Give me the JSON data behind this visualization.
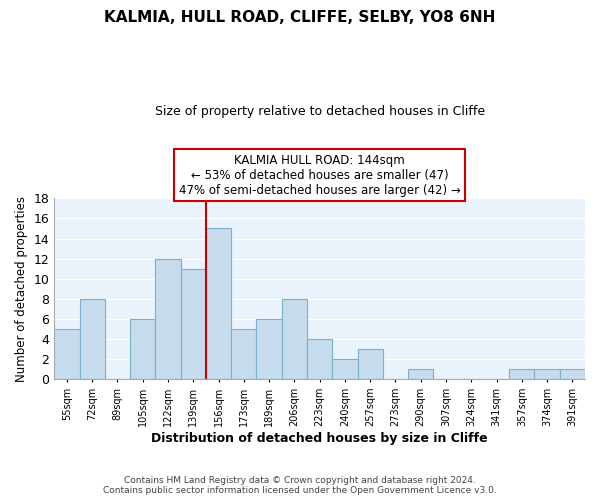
{
  "title": "KALMIA, HULL ROAD, CLIFFE, SELBY, YO8 6NH",
  "subtitle": "Size of property relative to detached houses in Cliffe",
  "xlabel": "Distribution of detached houses by size in Cliffe",
  "ylabel": "Number of detached properties",
  "bar_labels": [
    "55sqm",
    "72sqm",
    "89sqm",
    "105sqm",
    "122sqm",
    "139sqm",
    "156sqm",
    "173sqm",
    "189sqm",
    "206sqm",
    "223sqm",
    "240sqm",
    "257sqm",
    "273sqm",
    "290sqm",
    "307sqm",
    "324sqm",
    "341sqm",
    "357sqm",
    "374sqm",
    "391sqm"
  ],
  "bar_values": [
    5,
    8,
    0,
    6,
    12,
    11,
    15,
    5,
    6,
    8,
    4,
    2,
    3,
    0,
    1,
    0,
    0,
    0,
    1,
    1,
    1
  ],
  "bar_color": "#c6dcec",
  "bar_edgecolor": "#7ab0cc",
  "vline_x_index": 6,
  "vline_color": "#cc0000",
  "annotation_title": "KALMIA HULL ROAD: 144sqm",
  "annotation_line1": "← 53% of detached houses are smaller (47)",
  "annotation_line2": "47% of semi-detached houses are larger (42) →",
  "ylim": [
    0,
    18
  ],
  "yticks": [
    0,
    2,
    4,
    6,
    8,
    10,
    12,
    14,
    16,
    18
  ],
  "footer_line1": "Contains HM Land Registry data © Crown copyright and database right 2024.",
  "footer_line2": "Contains public sector information licensed under the Open Government Licence v3.0.",
  "background_color": "#ffffff",
  "plot_bg_color": "#eaf3fb",
  "grid_color": "#ffffff"
}
